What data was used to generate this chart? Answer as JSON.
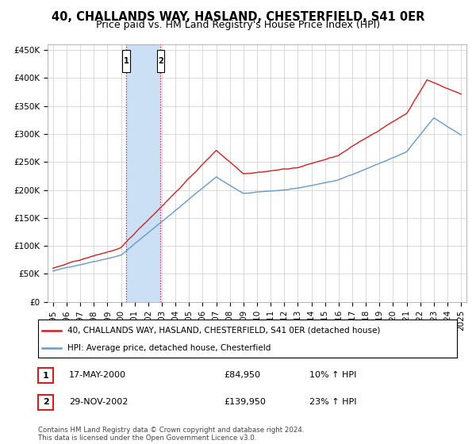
{
  "title": "40, CHALLANDS WAY, HASLAND, CHESTERFIELD, S41 0ER",
  "subtitle": "Price paid vs. HM Land Registry's House Price Index (HPI)",
  "footer": "Contains HM Land Registry data © Crown copyright and database right 2024.\nThis data is licensed under the Open Government Licence v3.0.",
  "legend_line1": "40, CHALLANDS WAY, HASLAND, CHESTERFIELD, S41 0ER (detached house)",
  "legend_line2": "HPI: Average price, detached house, Chesterfield",
  "transactions": [
    {
      "label": "1",
      "date": "17-MAY-2000",
      "price": "£84,950",
      "change": "10% ↑ HPI",
      "x_year": 2000.38
    },
    {
      "label": "2",
      "date": "29-NOV-2002",
      "price": "£139,950",
      "change": "23% ↑ HPI",
      "x_year": 2002.91
    }
  ],
  "highlight_region": [
    2000.38,
    2002.91
  ],
  "ylim": [
    0,
    460000
  ],
  "yticks": [
    0,
    50000,
    100000,
    150000,
    200000,
    250000,
    300000,
    350000,
    400000,
    450000
  ],
  "xlim": [
    1994.6,
    2025.4
  ],
  "xticks": [
    1995,
    1996,
    1997,
    1998,
    1999,
    2000,
    2001,
    2002,
    2003,
    2004,
    2005,
    2006,
    2007,
    2008,
    2009,
    2010,
    2011,
    2012,
    2013,
    2014,
    2015,
    2016,
    2017,
    2018,
    2019,
    2020,
    2021,
    2022,
    2023,
    2024,
    2025
  ],
  "hpi_color": "#6699cc",
  "price_color": "#cc2222",
  "highlight_color": "#cce0f5",
  "vline_color": "#cc2222",
  "grid_color": "#cccccc",
  "background_color": "#ffffff",
  "title_fontsize": 10.5,
  "subtitle_fontsize": 9,
  "axis_fontsize": 7.5
}
